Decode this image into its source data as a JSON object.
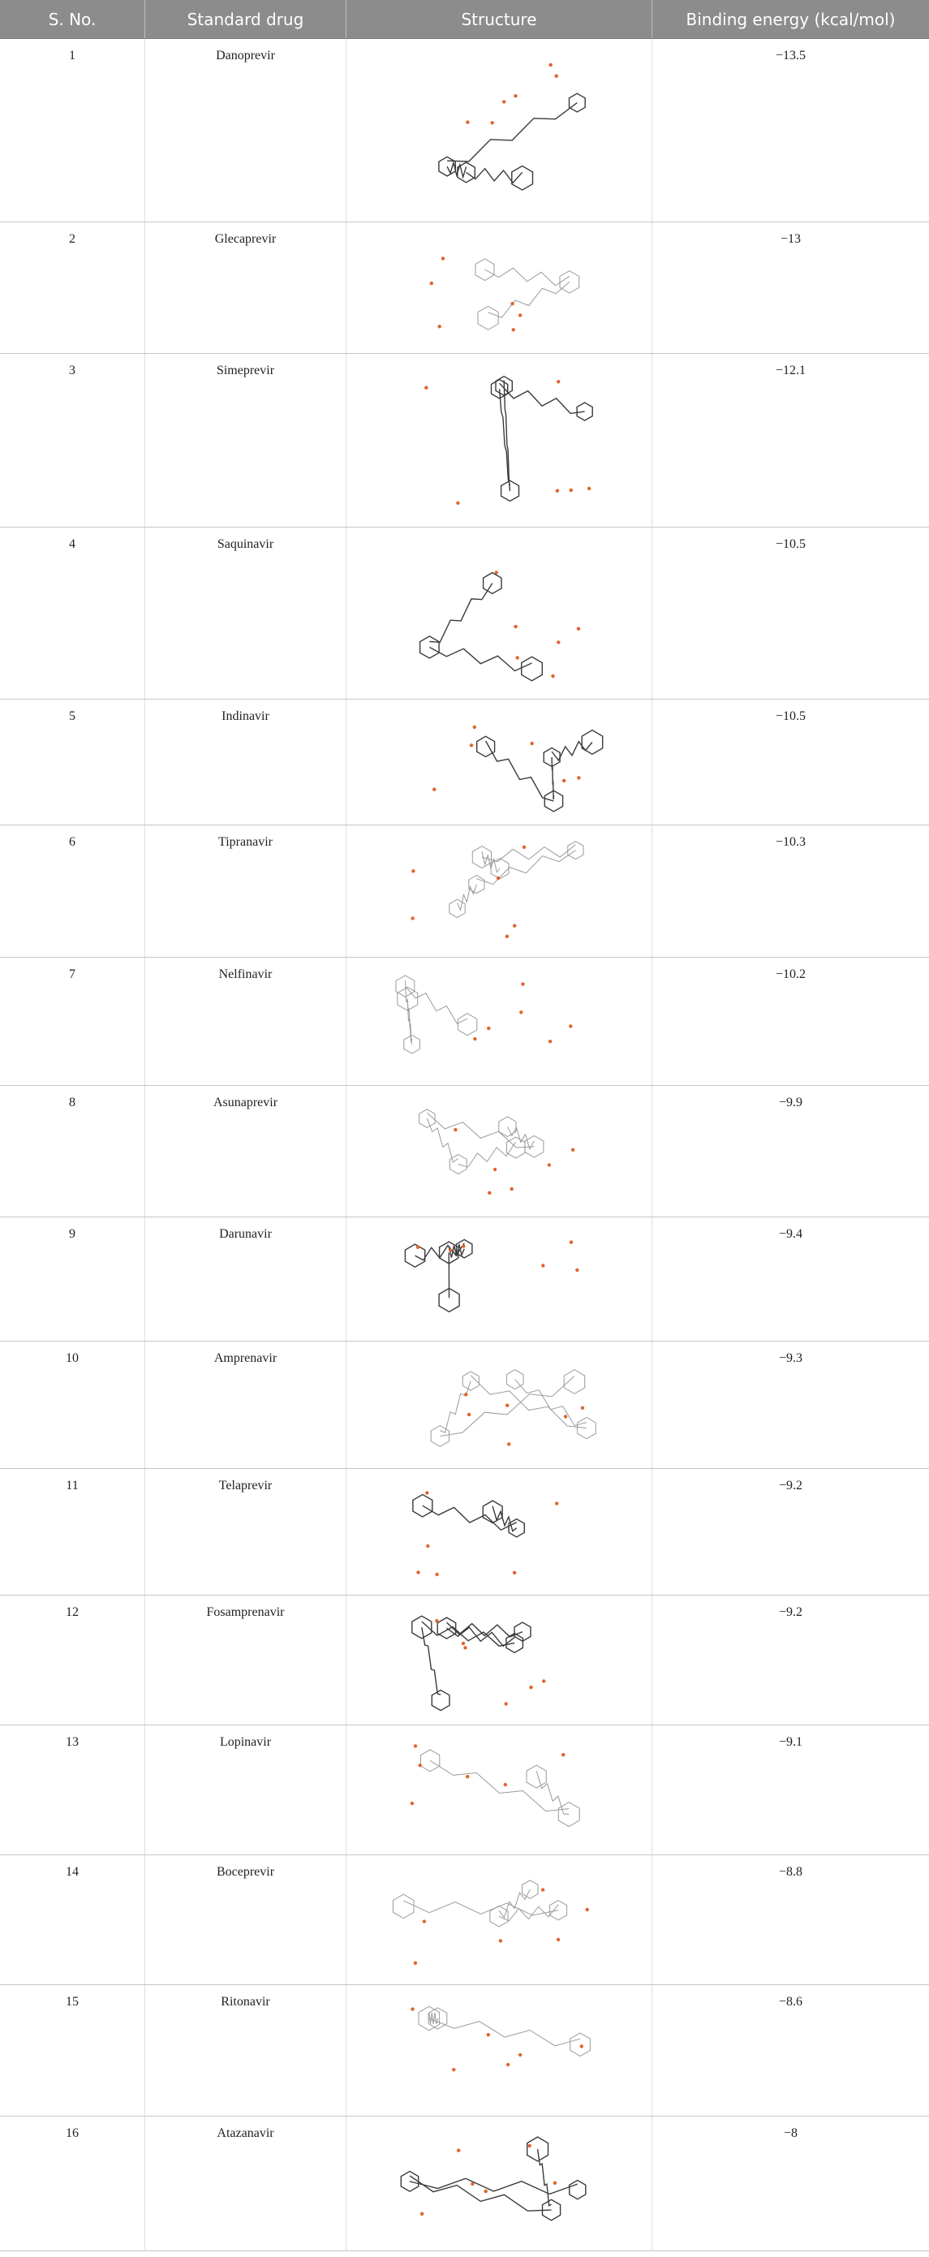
{
  "headers": [
    "S. No.",
    "Standard drug",
    "Structure",
    "Binding energy (kcal/mol)"
  ],
  "rows": [
    {
      "no": "1",
      "drug": "Danoprevir",
      "energy": "−13.5"
    },
    {
      "no": "2",
      "drug": "Glecaprevir",
      "energy": "−13"
    },
    {
      "no": "3",
      "drug": "Simeprevir",
      "energy": "−12.1"
    },
    {
      "no": "4",
      "drug": "Saquinavir",
      "energy": "−10.5"
    },
    {
      "no": "5",
      "drug": "Indinavir",
      "energy": "−10.5"
    },
    {
      "no": "6",
      "drug": "Tipranavir",
      "energy": "−10.3"
    },
    {
      "no": "7",
      "drug": "Nelfinavir",
      "energy": "−10.2"
    },
    {
      "no": "8",
      "drug": "Asunaprevir",
      "energy": "−9.9"
    },
    {
      "no": "9",
      "drug": "Darunavir",
      "energy": "−9.4"
    },
    {
      "no": "10",
      "drug": "Amprenavir",
      "energy": "−9.3"
    },
    {
      "no": "11",
      "drug": "Telaprevir",
      "energy": "−9.2"
    },
    {
      "no": "12",
      "drug": "Fosamprenavir",
      "energy": "−9.2"
    },
    {
      "no": "13",
      "drug": "Lopinavir",
      "energy": "−9.1"
    },
    {
      "no": "14",
      "drug": "Boceprevir",
      "energy": "−8.8"
    },
    {
      "no": "15",
      "drug": "Ritonavir",
      "energy": "−8.6"
    },
    {
      "no": "16",
      "drug": "Atazanavir",
      "energy": "−8"
    }
  ],
  "colors": {
    "header_bg": "#8c8c8c",
    "header_text": "#ffffff",
    "bond": "#3a3a3a",
    "heteroatom": "#e0642c"
  }
}
